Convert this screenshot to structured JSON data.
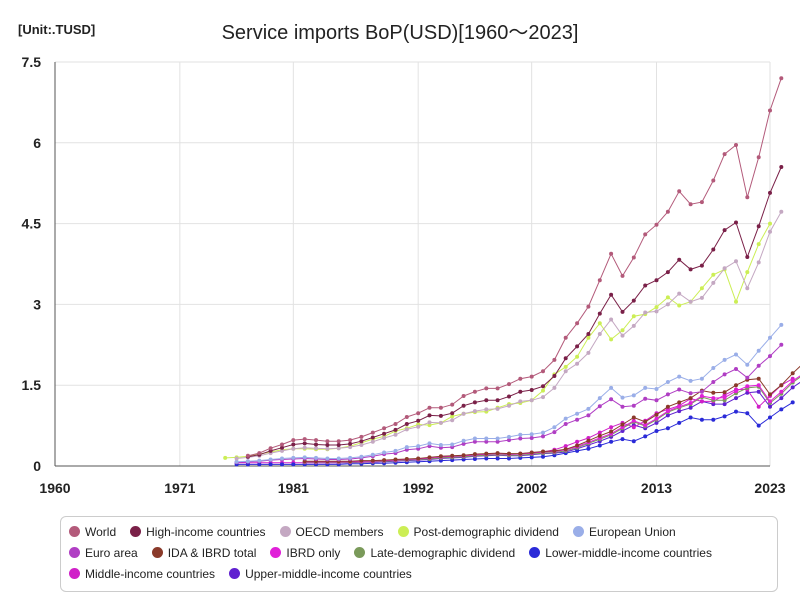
{
  "unit_label": "[Unit:.TUSD]",
  "chart_data": {
    "type": "line",
    "title": "Service imports BoP(USD)[1960～2023]",
    "xlabel": "",
    "ylabel": "",
    "xlim": [
      1960,
      2023
    ],
    "ylim": [
      0,
      7.5
    ],
    "x_ticks": [
      "1960",
      "1971",
      "1981",
      "1992",
      "2002",
      "2013",
      "2023"
    ],
    "y_ticks": [
      "0",
      "1.5",
      "3",
      "4.5",
      "6",
      "7.5"
    ],
    "grid": true,
    "legend_position": "bottom",
    "series": [
      {
        "name": "World",
        "color": "#b35a7a",
        "start": 1977,
        "values": [
          0.19,
          0.24,
          0.33,
          0.4,
          0.48,
          0.5,
          0.48,
          0.46,
          0.46,
          0.48,
          0.54,
          0.62,
          0.7,
          0.78,
          0.91,
          0.98,
          1.08,
          1.08,
          1.14,
          1.3,
          1.38,
          1.44,
          1.44,
          1.52,
          1.62,
          1.66,
          1.76,
          1.97,
          2.38,
          2.65,
          2.96,
          3.45,
          3.94,
          3.53,
          3.87,
          4.3,
          4.48,
          4.72,
          5.1,
          4.86,
          4.9,
          5.3,
          5.79,
          5.96,
          4.99,
          5.73,
          6.6,
          7.2
        ]
      },
      {
        "name": "High-income countries",
        "color": "#7a2048",
        "start": 1977,
        "values": [
          0.17,
          0.21,
          0.28,
          0.34,
          0.4,
          0.42,
          0.4,
          0.39,
          0.39,
          0.41,
          0.46,
          0.53,
          0.6,
          0.67,
          0.78,
          0.84,
          0.94,
          0.93,
          0.98,
          1.12,
          1.18,
          1.22,
          1.22,
          1.29,
          1.38,
          1.41,
          1.48,
          1.67,
          2.0,
          2.22,
          2.45,
          2.83,
          3.18,
          2.86,
          3.07,
          3.35,
          3.45,
          3.6,
          3.83,
          3.65,
          3.72,
          4.02,
          4.38,
          4.52,
          3.88,
          4.45,
          5.07,
          5.55
        ]
      },
      {
        "name": "OECD members",
        "color": "#c4a8c2",
        "start": 1976,
        "values": [
          0.14,
          0.16,
          0.19,
          0.24,
          0.28,
          0.32,
          0.34,
          0.33,
          0.32,
          0.33,
          0.35,
          0.39,
          0.45,
          0.52,
          0.58,
          0.68,
          0.73,
          0.81,
          0.8,
          0.85,
          0.97,
          1.02,
          1.05,
          1.06,
          1.12,
          1.2,
          1.22,
          1.28,
          1.45,
          1.76,
          1.9,
          2.1,
          2.45,
          2.72,
          2.42,
          2.6,
          2.85,
          2.87,
          3.0,
          3.2,
          3.05,
          3.12,
          3.4,
          3.67,
          3.8,
          3.3,
          3.78,
          4.35,
          4.72
        ]
      },
      {
        "name": "Post-demographic dividend",
        "color": "#ccee55",
        "start": 1975,
        "values": [
          0.15,
          0.16,
          0.18,
          0.22,
          0.26,
          0.3,
          0.32,
          0.32,
          0.31,
          0.31,
          0.33,
          0.37,
          0.43,
          0.5,
          0.55,
          0.65,
          0.7,
          0.77,
          0.76,
          0.8,
          0.92,
          0.97,
          1.0,
          1.01,
          1.08,
          1.15,
          1.17,
          1.22,
          1.4,
          1.7,
          1.84,
          2.03,
          2.38,
          2.65,
          2.35,
          2.52,
          2.78,
          2.82,
          2.95,
          3.13,
          2.98,
          3.05,
          3.3,
          3.55,
          3.65,
          3.05,
          3.6,
          4.12,
          4.5
        ]
      },
      {
        "name": "European Union",
        "color": "#9aaee8",
        "start": 1976,
        "values": [
          0.08,
          0.09,
          0.1,
          0.12,
          0.14,
          0.15,
          0.16,
          0.15,
          0.14,
          0.14,
          0.15,
          0.17,
          0.21,
          0.25,
          0.28,
          0.35,
          0.37,
          0.42,
          0.39,
          0.4,
          0.47,
          0.51,
          0.51,
          0.51,
          0.54,
          0.58,
          0.59,
          0.62,
          0.72,
          0.88,
          0.97,
          1.06,
          1.26,
          1.45,
          1.27,
          1.31,
          1.45,
          1.43,
          1.56,
          1.66,
          1.58,
          1.62,
          1.82,
          1.97,
          2.07,
          1.88,
          2.14,
          2.38,
          2.62
        ]
      },
      {
        "name": "Euro area",
        "color": "#b03ec4",
        "start": 1976,
        "values": [
          0.07,
          0.08,
          0.09,
          0.11,
          0.12,
          0.13,
          0.14,
          0.13,
          0.12,
          0.12,
          0.13,
          0.15,
          0.18,
          0.22,
          0.24,
          0.3,
          0.32,
          0.37,
          0.34,
          0.35,
          0.41,
          0.45,
          0.45,
          0.45,
          0.48,
          0.51,
          0.52,
          0.55,
          0.63,
          0.78,
          0.86,
          0.94,
          1.11,
          1.24,
          1.1,
          1.12,
          1.25,
          1.22,
          1.33,
          1.42,
          1.35,
          1.38,
          1.56,
          1.7,
          1.8,
          1.64,
          1.86,
          2.04,
          2.25
        ]
      },
      {
        "name": "IDA & IBRD total",
        "color": "#8a3a2a",
        "start": 1982,
        "values": [
          0.09,
          0.09,
          0.09,
          0.09,
          0.09,
          0.1,
          0.1,
          0.11,
          0.12,
          0.13,
          0.14,
          0.16,
          0.18,
          0.19,
          0.2,
          0.22,
          0.23,
          0.24,
          0.23,
          0.23,
          0.25,
          0.27,
          0.28,
          0.31,
          0.38,
          0.47,
          0.56,
          0.64,
          0.77,
          0.9,
          0.82,
          0.95,
          1.1,
          1.18,
          1.26,
          1.4,
          1.36,
          1.37,
          1.5,
          1.6,
          1.62,
          1.33,
          1.5,
          1.72,
          1.92
        ]
      },
      {
        "name": "IBRD only",
        "color": "#e020d8",
        "start": 1982,
        "values": [
          0.08,
          0.08,
          0.08,
          0.08,
          0.08,
          0.09,
          0.09,
          0.1,
          0.11,
          0.12,
          0.13,
          0.15,
          0.17,
          0.18,
          0.19,
          0.21,
          0.22,
          0.23,
          0.22,
          0.22,
          0.24,
          0.26,
          0.27,
          0.3,
          0.36,
          0.44,
          0.52,
          0.6,
          0.72,
          0.84,
          0.76,
          0.88,
          1.02,
          1.1,
          1.17,
          1.3,
          1.26,
          1.27,
          1.39,
          1.48,
          1.5,
          1.2,
          1.38,
          1.58,
          1.72
        ]
      },
      {
        "name": "Late-demographic dividend",
        "color": "#7a9a5a",
        "start": 1982,
        "values": [
          0.07,
          0.07,
          0.07,
          0.07,
          0.07,
          0.08,
          0.08,
          0.09,
          0.1,
          0.11,
          0.12,
          0.13,
          0.15,
          0.16,
          0.17,
          0.19,
          0.2,
          0.21,
          0.2,
          0.2,
          0.22,
          0.24,
          0.25,
          0.28,
          0.34,
          0.42,
          0.5,
          0.58,
          0.7,
          0.82,
          0.74,
          0.86,
          1.0,
          1.08,
          1.15,
          1.28,
          1.22,
          1.22,
          1.35,
          1.45,
          1.47,
          1.17,
          1.34,
          1.55,
          1.7
        ]
      },
      {
        "name": "Lower-middle-income countries",
        "color": "#2a2ad8",
        "start": 1976,
        "values": [
          0.03,
          0.03,
          0.03,
          0.03,
          0.03,
          0.03,
          0.03,
          0.03,
          0.03,
          0.03,
          0.04,
          0.04,
          0.05,
          0.05,
          0.06,
          0.07,
          0.08,
          0.09,
          0.1,
          0.11,
          0.12,
          0.13,
          0.14,
          0.14,
          0.14,
          0.15,
          0.16,
          0.17,
          0.2,
          0.24,
          0.28,
          0.32,
          0.38,
          0.45,
          0.5,
          0.46,
          0.55,
          0.65,
          0.7,
          0.8,
          0.9,
          0.86,
          0.86,
          0.92,
          1.01,
          0.98,
          0.75,
          0.9,
          1.05,
          1.18
        ]
      },
      {
        "name": "Middle-income countries",
        "color": "#d020c8",
        "start": 1976,
        "values": [
          0.06,
          0.06,
          0.06,
          0.06,
          0.06,
          0.06,
          0.06,
          0.06,
          0.06,
          0.06,
          0.07,
          0.07,
          0.08,
          0.09,
          0.1,
          0.11,
          0.13,
          0.14,
          0.15,
          0.17,
          0.18,
          0.2,
          0.21,
          0.21,
          0.21,
          0.23,
          0.24,
          0.26,
          0.3,
          0.37,
          0.45,
          0.52,
          0.62,
          0.72,
          0.8,
          0.72,
          0.84,
          0.98,
          1.05,
          1.12,
          1.25,
          1.2,
          1.2,
          1.32,
          1.42,
          1.42,
          1.1,
          1.3,
          1.5,
          1.62
        ]
      },
      {
        "name": "Upper-middle-income countries",
        "color": "#6020d0",
        "start": 1982,
        "values": [
          0.06,
          0.06,
          0.06,
          0.06,
          0.06,
          0.07,
          0.07,
          0.08,
          0.09,
          0.1,
          0.11,
          0.12,
          0.14,
          0.15,
          0.16,
          0.18,
          0.19,
          0.2,
          0.19,
          0.19,
          0.21,
          0.23,
          0.24,
          0.26,
          0.32,
          0.39,
          0.46,
          0.54,
          0.65,
          0.76,
          0.7,
          0.8,
          0.94,
          1.02,
          1.08,
          1.2,
          1.15,
          1.15,
          1.26,
          1.36,
          1.38,
          1.1,
          1.26,
          1.46,
          1.6
        ]
      }
    ]
  }
}
